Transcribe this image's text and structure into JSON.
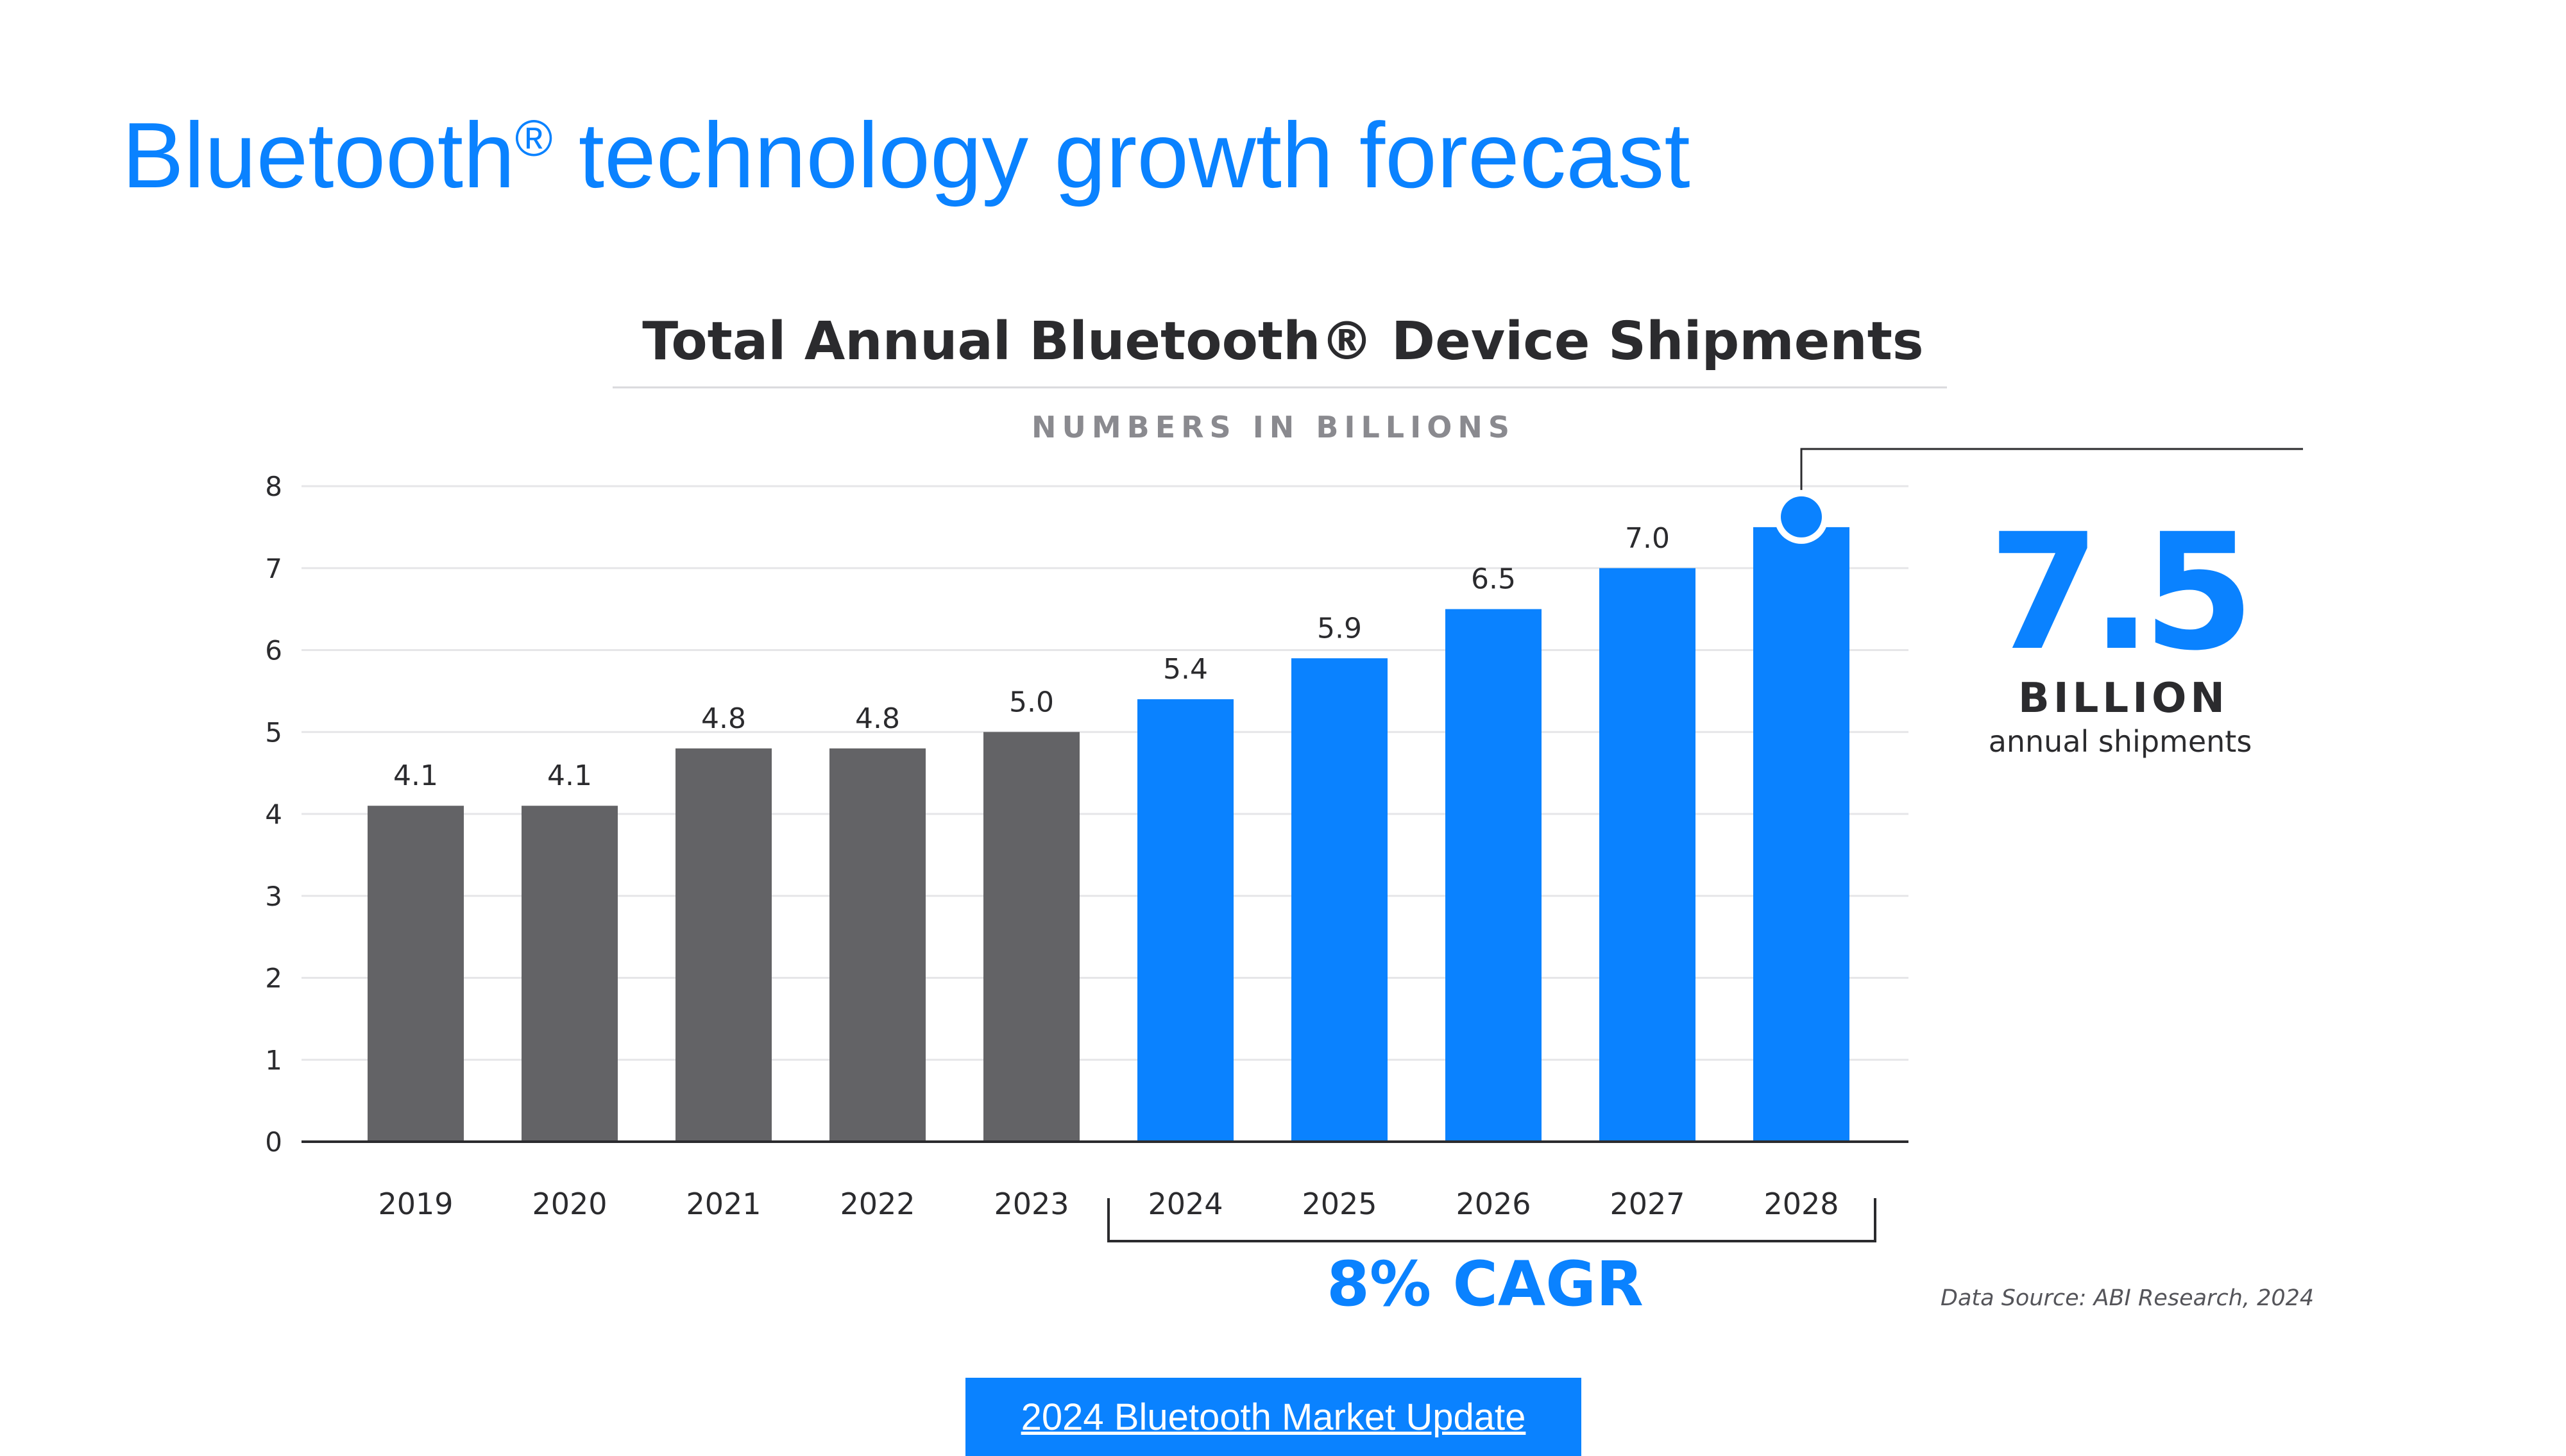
{
  "slide": {
    "title_main": "Bluetooth",
    "title_mark": "®",
    "title_rest": " technology growth forecast",
    "link_label": "2024 Bluetooth Market Update",
    "accent_color": "#0a82ff",
    "historical_color": "#636366"
  },
  "chart_data": {
    "type": "bar",
    "title": "Total Annual Bluetooth® Device Shipments",
    "subtitle": "NUMBERS IN BILLIONS",
    "categories": [
      "2019",
      "2020",
      "2021",
      "2022",
      "2023",
      "2024",
      "2025",
      "2026",
      "2027",
      "2028"
    ],
    "values": [
      4.1,
      4.1,
      4.8,
      4.8,
      5.0,
      5.4,
      5.9,
      6.5,
      7.0,
      7.5
    ],
    "data_labels": [
      "4.1",
      "4.1",
      "4.8",
      "4.8",
      "5.0",
      "5.4",
      "5.9",
      "6.5",
      "7.0",
      ""
    ],
    "series_type": [
      "historical",
      "historical",
      "historical",
      "historical",
      "historical",
      "forecast",
      "forecast",
      "forecast",
      "forecast",
      "forecast"
    ],
    "ylim": [
      0,
      8
    ],
    "yticks": [
      "0",
      "1",
      "2",
      "3",
      "4",
      "5",
      "6",
      "7",
      "8"
    ],
    "grid": true,
    "xlabel": "",
    "ylabel": "",
    "highlight": {
      "value": "7.5",
      "unit": "BILLION",
      "caption": "annual shipments"
    },
    "cagr_label": "8% CAGR",
    "source": "Data Source: ABI Research, 2024"
  }
}
